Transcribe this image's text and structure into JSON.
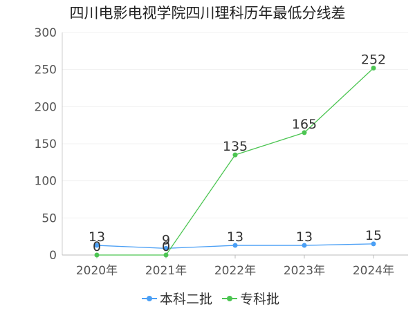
{
  "chart_data": {
    "type": "line",
    "title": "四川电影电视学院四川理科历年最低分线差",
    "xlabel": "",
    "ylabel": "",
    "categories": [
      "2020年",
      "2021年",
      "2022年",
      "2023年",
      "2024年"
    ],
    "ylim": [
      0,
      300
    ],
    "yticks": [
      0,
      50,
      100,
      150,
      200,
      250,
      300
    ],
    "grid": true,
    "legend_position": "bottom-center",
    "series": [
      {
        "name": "本科二批",
        "values": [
          13,
          9,
          13,
          13,
          15
        ],
        "color": "#4a9ff5"
      },
      {
        "name": "专科批",
        "values": [
          0,
          0,
          135,
          165,
          252
        ],
        "color": "#4cc552"
      }
    ]
  }
}
